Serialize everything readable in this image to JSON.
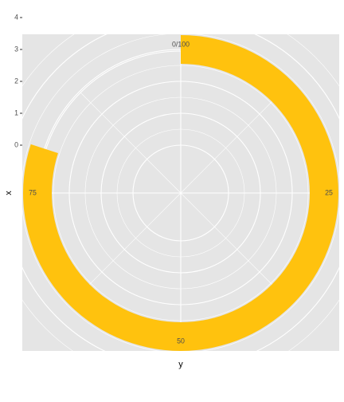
{
  "chart_data": {
    "type": "bar",
    "coord": "polar",
    "title": "",
    "xlabel": "y",
    "ylabel": "x",
    "theta_ticks": [
      "0/100",
      "25",
      "50",
      "75"
    ],
    "theta_tick_values": [
      0,
      25,
      50,
      75
    ],
    "theta_range": [
      0,
      100
    ],
    "radial_ticks": [
      "0",
      "1",
      "2",
      "3",
      "4"
    ],
    "radial_tick_values": [
      0,
      1,
      2,
      3,
      4
    ],
    "radial_range": [
      -1.5,
      4.9
    ],
    "bars": [
      {
        "x": 3,
        "y": 80
      }
    ],
    "bar_width": 0.9,
    "grid": true,
    "legend": "none",
    "colors": {
      "bar": "#FFC20E",
      "panel": "#E5E5E5",
      "grid": "#FFFFFF"
    }
  }
}
